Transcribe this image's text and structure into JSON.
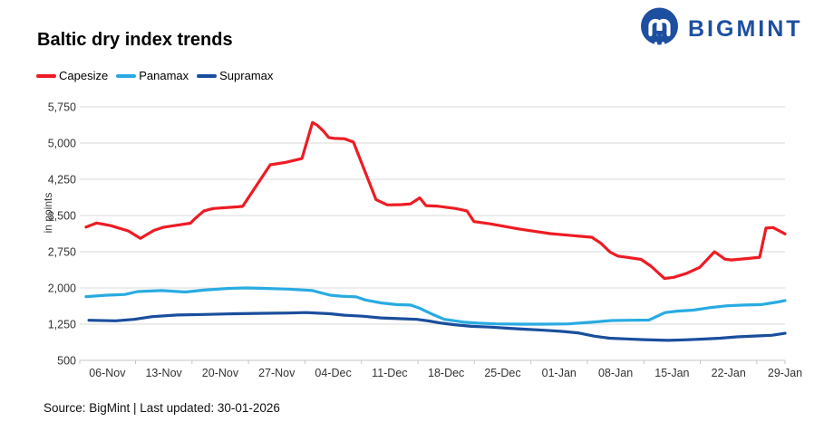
{
  "header": {
    "title": "Baltic dry index trends",
    "brand": {
      "name": "BIGMINT",
      "color": "#1d4fa1",
      "logo_icon": "bigmint-people-monogram"
    }
  },
  "legend": [
    {
      "label": "Capesize",
      "color": "#ed1c24"
    },
    {
      "label": "Panamax",
      "color": "#29abe2"
    },
    {
      "label": "Supramax",
      "color": "#1a4e9d"
    }
  ],
  "footer": {
    "text": "Source: BigMint | Last updated: 30-01-2026"
  },
  "chart_data": {
    "type": "line",
    "title": "Baltic dry index trends",
    "xlabel": "",
    "ylabel": "in points",
    "ylim": [
      500,
      5750
    ],
    "ytick_step": 750,
    "ytick_labels": [
      "500",
      "1,250",
      "2,000",
      "2,750",
      "3,500",
      "4,250",
      "5,000",
      "5,750"
    ],
    "xtick_labels": [
      "06-Nov",
      "13-Nov",
      "20-Nov",
      "27-Nov",
      "04-Dec",
      "11-Dec",
      "18-Dec",
      "25-Dec",
      "01-Jan",
      "08-Jan",
      "15-Jan",
      "22-Jan",
      "29-Jan"
    ],
    "grid": "horizontal",
    "legend_position": "top-left",
    "gridline_color": "#d9d9d9",
    "axis_color": "#c5c5c5",
    "tick_label_color": "#333333",
    "series": [
      {
        "name": "Capesize",
        "color": "#ed1c24",
        "points": [
          {
            "d": "04-Nov",
            "x": 0.009,
            "v": 3260
          },
          {
            "d": "05-Nov",
            "x": 0.024,
            "v": 3345
          },
          {
            "d": "07-Nov",
            "x": 0.044,
            "v": 3290
          },
          {
            "d": "09-Nov",
            "x": 0.069,
            "v": 3180
          },
          {
            "d": "10-Nov",
            "x": 0.086,
            "v": 3025
          },
          {
            "d": "12-Nov",
            "x": 0.105,
            "v": 3190
          },
          {
            "d": "13-Nov",
            "x": 0.118,
            "v": 3255
          },
          {
            "d": "15-Nov",
            "x": 0.138,
            "v": 3300
          },
          {
            "d": "16-Nov",
            "x": 0.157,
            "v": 3340
          },
          {
            "d": "17-Nov",
            "x": 0.163,
            "v": 3430
          },
          {
            "d": "18-Nov",
            "x": 0.176,
            "v": 3595
          },
          {
            "d": "19-Nov",
            "x": 0.189,
            "v": 3645
          },
          {
            "d": "22-Nov",
            "x": 0.224,
            "v": 3680
          },
          {
            "d": "23-Nov",
            "x": 0.231,
            "v": 3690
          },
          {
            "d": "26-Nov",
            "x": 0.27,
            "v": 4550
          },
          {
            "d": "28-Nov",
            "x": 0.292,
            "v": 4600
          },
          {
            "d": "30-Nov",
            "x": 0.315,
            "v": 4680
          },
          {
            "d": "01-Dec",
            "x": 0.33,
            "v": 5425
          },
          {
            "d": "02-Dec",
            "x": 0.337,
            "v": 5365
          },
          {
            "d": "03-Dec",
            "x": 0.346,
            "v": 5240
          },
          {
            "d": "04-Dec",
            "x": 0.353,
            "v": 5115
          },
          {
            "d": "05-Dec",
            "x": 0.362,
            "v": 5095
          },
          {
            "d": "06-Dec",
            "x": 0.375,
            "v": 5090
          },
          {
            "d": "07-Dec",
            "x": 0.388,
            "v": 5020
          },
          {
            "d": "09-Dec",
            "x": 0.42,
            "v": 3830
          },
          {
            "d": "11-Dec",
            "x": 0.436,
            "v": 3720
          },
          {
            "d": "12-Dec",
            "x": 0.456,
            "v": 3725
          },
          {
            "d": "13-Dec",
            "x": 0.469,
            "v": 3740
          },
          {
            "d": "15-Dec",
            "x": 0.482,
            "v": 3865
          },
          {
            "d": "16-Dec",
            "x": 0.491,
            "v": 3705
          },
          {
            "d": "17-Dec",
            "x": 0.506,
            "v": 3695
          },
          {
            "d": "19-Dec",
            "x": 0.533,
            "v": 3645
          },
          {
            "d": "21-Dec",
            "x": 0.549,
            "v": 3595
          },
          {
            "d": "22-Dec",
            "x": 0.559,
            "v": 3375
          },
          {
            "d": "24-Dec",
            "x": 0.581,
            "v": 3330
          },
          {
            "d": "27-Dec",
            "x": 0.623,
            "v": 3220
          },
          {
            "d": "31-Dec",
            "x": 0.667,
            "v": 3125
          },
          {
            "d": "04-Jan",
            "x": 0.709,
            "v": 3070
          },
          {
            "d": "05-Jan",
            "x": 0.726,
            "v": 3050
          },
          {
            "d": "06-Jan",
            "x": 0.739,
            "v": 2925
          },
          {
            "d": "07-Jan",
            "x": 0.752,
            "v": 2740
          },
          {
            "d": "08-Jan",
            "x": 0.763,
            "v": 2660
          },
          {
            "d": "09-Jan",
            "x": 0.778,
            "v": 2630
          },
          {
            "d": "10-Jan",
            "x": 0.796,
            "v": 2590
          },
          {
            "d": "12-Jan",
            "x": 0.81,
            "v": 2450
          },
          {
            "d": "13-Jan",
            "x": 0.829,
            "v": 2195
          },
          {
            "d": "14-Jan",
            "x": 0.842,
            "v": 2220
          },
          {
            "d": "16-Jan",
            "x": 0.86,
            "v": 2300
          },
          {
            "d": "17-Jan",
            "x": 0.879,
            "v": 2425
          },
          {
            "d": "19-Jan",
            "x": 0.9,
            "v": 2750
          },
          {
            "d": "21-Jan",
            "x": 0.915,
            "v": 2595
          },
          {
            "d": "22-Jan",
            "x": 0.924,
            "v": 2580
          },
          {
            "d": "24-Jan",
            "x": 0.947,
            "v": 2610
          },
          {
            "d": "25-Jan",
            "x": 0.964,
            "v": 2635
          },
          {
            "d": "26-Jan",
            "x": 0.973,
            "v": 3240
          },
          {
            "d": "27-Jan",
            "x": 0.983,
            "v": 3250
          },
          {
            "d": "29-Jan",
            "x": 1.0,
            "v": 3120
          }
        ]
      },
      {
        "name": "Panamax",
        "color": "#29abe2",
        "points": [
          {
            "d": "04-Nov",
            "x": 0.009,
            "v": 1820
          },
          {
            "d": "06-Nov",
            "x": 0.039,
            "v": 1850
          },
          {
            "d": "09-Nov",
            "x": 0.064,
            "v": 1865
          },
          {
            "d": "10-Nov",
            "x": 0.082,
            "v": 1925
          },
          {
            "d": "13-Nov",
            "x": 0.116,
            "v": 1945
          },
          {
            "d": "16-Nov",
            "x": 0.15,
            "v": 1915
          },
          {
            "d": "18-Nov",
            "x": 0.176,
            "v": 1955
          },
          {
            "d": "21-Nov",
            "x": 0.211,
            "v": 1990
          },
          {
            "d": "23-Nov",
            "x": 0.236,
            "v": 2000
          },
          {
            "d": "26-Nov",
            "x": 0.262,
            "v": 1990
          },
          {
            "d": "29-Nov",
            "x": 0.296,
            "v": 1975
          },
          {
            "d": "01-Dec",
            "x": 0.33,
            "v": 1945
          },
          {
            "d": "04-Dec",
            "x": 0.355,
            "v": 1850
          },
          {
            "d": "05-Dec",
            "x": 0.371,
            "v": 1830
          },
          {
            "d": "07-Dec",
            "x": 0.392,
            "v": 1815
          },
          {
            "d": "08-Dec",
            "x": 0.405,
            "v": 1750
          },
          {
            "d": "10-Dec",
            "x": 0.427,
            "v": 1690
          },
          {
            "d": "12-Dec",
            "x": 0.449,
            "v": 1655
          },
          {
            "d": "13-Dec",
            "x": 0.469,
            "v": 1645
          },
          {
            "d": "15-Dec",
            "x": 0.482,
            "v": 1580
          },
          {
            "d": "16-Dec",
            "x": 0.5,
            "v": 1455
          },
          {
            "d": "18-Dec",
            "x": 0.517,
            "v": 1350
          },
          {
            "d": "20-Dec",
            "x": 0.546,
            "v": 1290
          },
          {
            "d": "22-Dec",
            "x": 0.564,
            "v": 1270
          },
          {
            "d": "25-Dec",
            "x": 0.59,
            "v": 1255
          },
          {
            "d": "28-Dec",
            "x": 0.623,
            "v": 1250
          },
          {
            "d": "01-Jan",
            "x": 0.658,
            "v": 1250
          },
          {
            "d": "03-Jan",
            "x": 0.693,
            "v": 1255
          },
          {
            "d": "06-Jan",
            "x": 0.729,
            "v": 1295
          },
          {
            "d": "08-Jan",
            "x": 0.754,
            "v": 1325
          },
          {
            "d": "10-Jan",
            "x": 0.78,
            "v": 1330
          },
          {
            "d": "12-Jan",
            "x": 0.807,
            "v": 1335
          },
          {
            "d": "14-Jan",
            "x": 0.83,
            "v": 1490
          },
          {
            "d": "16-Jan",
            "x": 0.847,
            "v": 1520
          },
          {
            "d": "18-Jan",
            "x": 0.87,
            "v": 1540
          },
          {
            "d": "20-Jan",
            "x": 0.895,
            "v": 1595
          },
          {
            "d": "22-Jan",
            "x": 0.918,
            "v": 1630
          },
          {
            "d": "24-Jan",
            "x": 0.942,
            "v": 1645
          },
          {
            "d": "26-Jan",
            "x": 0.966,
            "v": 1655
          },
          {
            "d": "28-Jan",
            "x": 0.99,
            "v": 1710
          },
          {
            "d": "29-Jan",
            "x": 1.0,
            "v": 1740
          }
        ]
      },
      {
        "name": "Supramax",
        "color": "#1a4e9d",
        "points": [
          {
            "d": "04-Nov",
            "x": 0.013,
            "v": 1330
          },
          {
            "d": "07-Nov",
            "x": 0.051,
            "v": 1320
          },
          {
            "d": "10-Nov",
            "x": 0.077,
            "v": 1350
          },
          {
            "d": "12-Nov",
            "x": 0.103,
            "v": 1405
          },
          {
            "d": "15-Nov",
            "x": 0.138,
            "v": 1440
          },
          {
            "d": "18-Nov",
            "x": 0.176,
            "v": 1450
          },
          {
            "d": "22-Nov",
            "x": 0.219,
            "v": 1465
          },
          {
            "d": "26-Nov",
            "x": 0.262,
            "v": 1475
          },
          {
            "d": "29-Nov",
            "x": 0.296,
            "v": 1480
          },
          {
            "d": "01-Dec",
            "x": 0.321,
            "v": 1490
          },
          {
            "d": "04-Dec",
            "x": 0.355,
            "v": 1465
          },
          {
            "d": "06-Dec",
            "x": 0.375,
            "v": 1435
          },
          {
            "d": "08-Dec",
            "x": 0.401,
            "v": 1415
          },
          {
            "d": "10-Dec",
            "x": 0.427,
            "v": 1380
          },
          {
            "d": "12-Dec",
            "x": 0.452,
            "v": 1365
          },
          {
            "d": "14-Dec",
            "x": 0.478,
            "v": 1350
          },
          {
            "d": "16-Dec",
            "x": 0.495,
            "v": 1315
          },
          {
            "d": "17-Dec",
            "x": 0.513,
            "v": 1270
          },
          {
            "d": "19-Dec",
            "x": 0.53,
            "v": 1240
          },
          {
            "d": "21-Dec",
            "x": 0.555,
            "v": 1205
          },
          {
            "d": "24-Dec",
            "x": 0.581,
            "v": 1190
          },
          {
            "d": "26-Dec",
            "x": 0.607,
            "v": 1165
          },
          {
            "d": "28-Dec",
            "x": 0.632,
            "v": 1145
          },
          {
            "d": "01-Jan",
            "x": 0.658,
            "v": 1125
          },
          {
            "d": "03-Jan",
            "x": 0.684,
            "v": 1100
          },
          {
            "d": "05-Jan",
            "x": 0.706,
            "v": 1070
          },
          {
            "d": "07-Jan",
            "x": 0.73,
            "v": 1000
          },
          {
            "d": "08-Jan",
            "x": 0.751,
            "v": 960
          },
          {
            "d": "10-Jan",
            "x": 0.775,
            "v": 945
          },
          {
            "d": "12-Jan",
            "x": 0.799,
            "v": 930
          },
          {
            "d": "14-Jan",
            "x": 0.834,
            "v": 915
          },
          {
            "d": "16-Jan",
            "x": 0.859,
            "v": 925
          },
          {
            "d": "18-Jan",
            "x": 0.883,
            "v": 940
          },
          {
            "d": "20-Jan",
            "x": 0.908,
            "v": 960
          },
          {
            "d": "23-Jan",
            "x": 0.932,
            "v": 988
          },
          {
            "d": "25-Jan",
            "x": 0.957,
            "v": 1005
          },
          {
            "d": "27-Jan",
            "x": 0.981,
            "v": 1020
          },
          {
            "d": "29-Jan",
            "x": 1.0,
            "v": 1060
          }
        ]
      }
    ]
  }
}
